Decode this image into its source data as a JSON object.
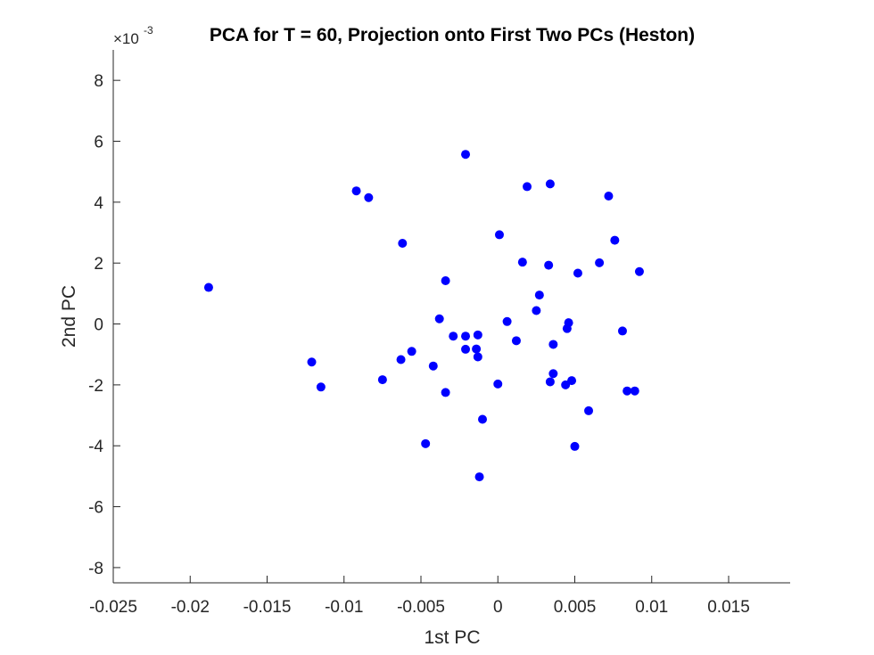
{
  "chart_data": {
    "type": "scatter",
    "title": "PCA for T = 60, Projection onto First Two PCs (Heston)",
    "xlabel": "1st PC",
    "ylabel": "2nd PC",
    "y_exponent_label": "×10",
    "y_exponent": "-3",
    "xlim": [
      -0.025,
      0.019
    ],
    "ylim": [
      -8.5,
      9.0
    ],
    "x_ticks": [
      -0.025,
      -0.02,
      -0.015,
      -0.01,
      -0.005,
      0,
      0.005,
      0.01,
      0.015
    ],
    "x_tick_labels": [
      "-0.025",
      "-0.02",
      "-0.015",
      "-0.01",
      "-0.005",
      "0",
      "0.005",
      "0.01",
      "0.015"
    ],
    "y_ticks": [
      -8,
      -6,
      -4,
      -2,
      0,
      2,
      4,
      6,
      8
    ],
    "y_tick_labels": [
      "-8",
      "-6",
      "-4",
      "-2",
      "0",
      "2",
      "4",
      "6",
      "8"
    ],
    "grid": false,
    "marker_color": "#0000ff",
    "points": [
      [
        -0.0188,
        1.2
      ],
      [
        -0.0121,
        -1.25
      ],
      [
        -0.0115,
        -2.07
      ],
      [
        -0.0092,
        4.37
      ],
      [
        -0.0084,
        4.15
      ],
      [
        -0.0075,
        -1.83
      ],
      [
        -0.0063,
        -1.17
      ],
      [
        -0.0062,
        2.65
      ],
      [
        -0.0056,
        -0.9
      ],
      [
        -0.0047,
        -3.93
      ],
      [
        -0.0042,
        -1.38
      ],
      [
        -0.0038,
        0.17
      ],
      [
        -0.0034,
        1.42
      ],
      [
        -0.0034,
        -2.25
      ],
      [
        -0.0029,
        -0.4
      ],
      [
        -0.0021,
        5.57
      ],
      [
        -0.0021,
        -0.4
      ],
      [
        -0.0021,
        -0.83
      ],
      [
        -0.0014,
        -0.82
      ],
      [
        -0.0013,
        -0.36
      ],
      [
        -0.0013,
        -1.08
      ],
      [
        -0.0012,
        -5.02
      ],
      [
        -0.001,
        -3.13
      ],
      [
        0.0001,
        2.93
      ],
      [
        0.0,
        -1.97
      ],
      [
        0.0006,
        0.08
      ],
      [
        0.0012,
        -0.55
      ],
      [
        0.0016,
        2.03
      ],
      [
        0.0019,
        4.51
      ],
      [
        0.0025,
        0.44
      ],
      [
        0.0027,
        0.95
      ],
      [
        0.0033,
        1.93
      ],
      [
        0.0034,
        4.6
      ],
      [
        0.0034,
        -1.9
      ],
      [
        0.0036,
        -1.63
      ],
      [
        0.0036,
        -0.67
      ],
      [
        0.0044,
        -2.0
      ],
      [
        0.0045,
        -0.15
      ],
      [
        0.0046,
        0.04
      ],
      [
        0.0048,
        -1.86
      ],
      [
        0.005,
        -4.02
      ],
      [
        0.0052,
        1.67
      ],
      [
        0.0059,
        -2.85
      ],
      [
        0.0066,
        2.01
      ],
      [
        0.0072,
        4.2
      ],
      [
        0.0076,
        2.75
      ],
      [
        0.0081,
        -0.23
      ],
      [
        0.0084,
        -2.2
      ],
      [
        0.0089,
        -2.2
      ],
      [
        0.0092,
        1.72
      ]
    ]
  }
}
